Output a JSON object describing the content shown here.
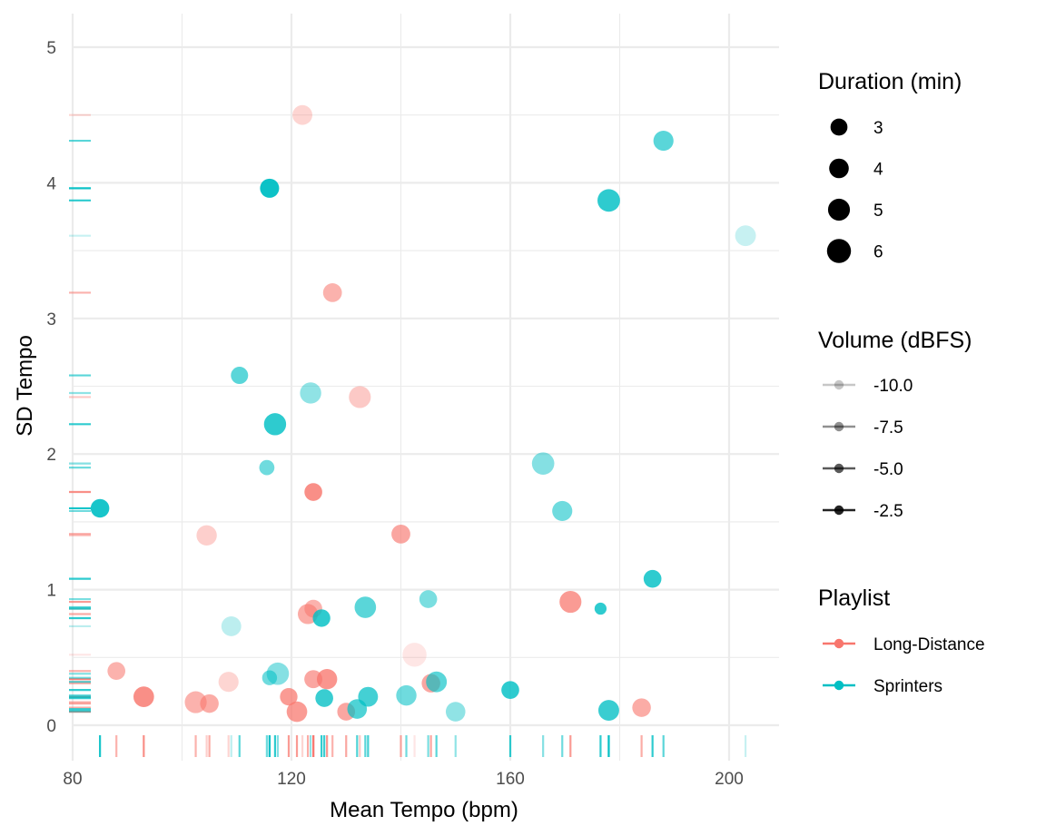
{
  "chart_data": {
    "type": "scatter",
    "xlabel": "Mean Tempo (bpm)",
    "ylabel": "SD Tempo",
    "xlim": [
      80,
      209
    ],
    "ylim": [
      0,
      5.25
    ],
    "x_ticks": [
      80,
      120,
      160,
      200
    ],
    "y_ticks": [
      0,
      1,
      2,
      3,
      4,
      5
    ],
    "grid": true,
    "rug": true,
    "legend_position": "right",
    "size_legend": {
      "title": "Duration (min)",
      "entries": [
        {
          "label": "3",
          "value": 3
        },
        {
          "label": "4",
          "value": 4
        },
        {
          "label": "5",
          "value": 5
        },
        {
          "label": "6",
          "value": 6
        }
      ]
    },
    "alpha_legend": {
      "title": "Volume (dBFS)",
      "entries": [
        {
          "label": "-10.0",
          "value": -10.0
        },
        {
          "label": "-7.5",
          "value": -7.5
        },
        {
          "label": "-5.0",
          "value": -5.0
        },
        {
          "label": "-2.5",
          "value": -2.5
        }
      ]
    },
    "color_legend": {
      "title": "Playlist",
      "entries": [
        {
          "label": "Long-Distance",
          "color": "#F8766D"
        },
        {
          "label": "Sprinters",
          "color": "#00BFC4"
        }
      ]
    },
    "series": [
      {
        "name": "Long-Distance",
        "color": "#F8766D",
        "points": [
          {
            "x": 122,
            "y": 4.5,
            "duration": 4.1,
            "volume": -9.0
          },
          {
            "x": 127.5,
            "y": 3.19,
            "duration": 3.7,
            "volume": -6.0
          },
          {
            "x": 132.5,
            "y": 2.42,
            "duration": 5.0,
            "volume": -8.0
          },
          {
            "x": 124,
            "y": 1.72,
            "duration": 3.3,
            "volume": -3.0
          },
          {
            "x": 104.5,
            "y": 1.4,
            "duration": 4.3,
            "volume": -8.5
          },
          {
            "x": 140,
            "y": 1.41,
            "duration": 3.7,
            "volume": -5.0
          },
          {
            "x": 171,
            "y": 0.91,
            "duration": 5.0,
            "volume": -4.0
          },
          {
            "x": 123,
            "y": 0.82,
            "duration": 4.2,
            "volume": -5.5
          },
          {
            "x": 124,
            "y": 0.86,
            "duration": 3.3,
            "volume": -6.0
          },
          {
            "x": 142.5,
            "y": 0.52,
            "duration": 6.0,
            "volume": -10.5
          },
          {
            "x": 88,
            "y": 0.4,
            "duration": 3.3,
            "volume": -6.0
          },
          {
            "x": 108.5,
            "y": 0.32,
            "duration": 4.2,
            "volume": -9.0
          },
          {
            "x": 126.5,
            "y": 0.34,
            "duration": 4.3,
            "volume": -3.5
          },
          {
            "x": 124,
            "y": 0.34,
            "duration": 3.4,
            "volume": -5.0
          },
          {
            "x": 145.5,
            "y": 0.31,
            "duration": 3.6,
            "volume": -5.0
          },
          {
            "x": 93,
            "y": 0.21,
            "duration": 4.4,
            "volume": -3.0
          },
          {
            "x": 102.5,
            "y": 0.17,
            "duration": 5.0,
            "volume": -6.0
          },
          {
            "x": 105,
            "y": 0.16,
            "duration": 3.6,
            "volume": -5.5
          },
          {
            "x": 119.5,
            "y": 0.21,
            "duration": 3.2,
            "volume": -4.0
          },
          {
            "x": 121,
            "y": 0.1,
            "duration": 4.4,
            "volume": -4.0
          },
          {
            "x": 130,
            "y": 0.1,
            "duration": 3.3,
            "volume": -5.0
          },
          {
            "x": 184,
            "y": 0.13,
            "duration": 3.6,
            "volume": -5.5
          }
        ]
      },
      {
        "name": "Sprinters",
        "color": "#00BFC4",
        "points": [
          {
            "x": 188,
            "y": 4.31,
            "duration": 4.2,
            "volume": -5.0
          },
          {
            "x": 116,
            "y": 3.96,
            "duration": 3.8,
            "volume": -1.5
          },
          {
            "x": 178,
            "y": 3.87,
            "duration": 5.3,
            "volume": -3.0
          },
          {
            "x": 203,
            "y": 3.61,
            "duration": 4.5,
            "volume": -10.0
          },
          {
            "x": 110.5,
            "y": 2.58,
            "duration": 3.1,
            "volume": -5.0
          },
          {
            "x": 123.5,
            "y": 2.45,
            "duration": 4.7,
            "volume": -7.5
          },
          {
            "x": 117,
            "y": 2.22,
            "duration": 5.1,
            "volume": -3.0
          },
          {
            "x": 115.5,
            "y": 1.9,
            "duration": 2.4,
            "volume": -6.0
          },
          {
            "x": 166,
            "y": 1.93,
            "duration": 5.2,
            "volume": -7.0
          },
          {
            "x": 85,
            "y": 1.6,
            "duration": 3.6,
            "volume": -2.0
          },
          {
            "x": 169.5,
            "y": 1.58,
            "duration": 4.2,
            "volume": -6.0
          },
          {
            "x": 186,
            "y": 1.08,
            "duration": 3.3,
            "volume": -3.0
          },
          {
            "x": 133.5,
            "y": 0.87,
            "duration": 4.8,
            "volume": -5.0
          },
          {
            "x": 145,
            "y": 0.93,
            "duration": 3.3,
            "volume": -6.5
          },
          {
            "x": 176.5,
            "y": 0.86,
            "duration": 1.5,
            "volume": -3.0
          },
          {
            "x": 125.5,
            "y": 0.79,
            "duration": 3.2,
            "volume": -3.0
          },
          {
            "x": 109,
            "y": 0.73,
            "duration": 4.1,
            "volume": -9.5
          },
          {
            "x": 117.5,
            "y": 0.38,
            "duration": 5.2,
            "volume": -7.0
          },
          {
            "x": 116,
            "y": 0.35,
            "duration": 2.3,
            "volume": -6.0
          },
          {
            "x": 146.5,
            "y": 0.32,
            "duration": 4.5,
            "volume": -5.0
          },
          {
            "x": 160,
            "y": 0.26,
            "duration": 3.3,
            "volume": -3.0
          },
          {
            "x": 126,
            "y": 0.2,
            "duration": 3.3,
            "volume": -3.5
          },
          {
            "x": 134,
            "y": 0.21,
            "duration": 4.1,
            "volume": -4.0
          },
          {
            "x": 141,
            "y": 0.22,
            "duration": 4.3,
            "volume": -6.0
          },
          {
            "x": 132,
            "y": 0.12,
            "duration": 4.0,
            "volume": -4.5
          },
          {
            "x": 150,
            "y": 0.1,
            "duration": 4.0,
            "volume": -7.5
          },
          {
            "x": 178,
            "y": 0.11,
            "duration": 4.5,
            "volume": -3.5
          }
        ]
      }
    ]
  }
}
